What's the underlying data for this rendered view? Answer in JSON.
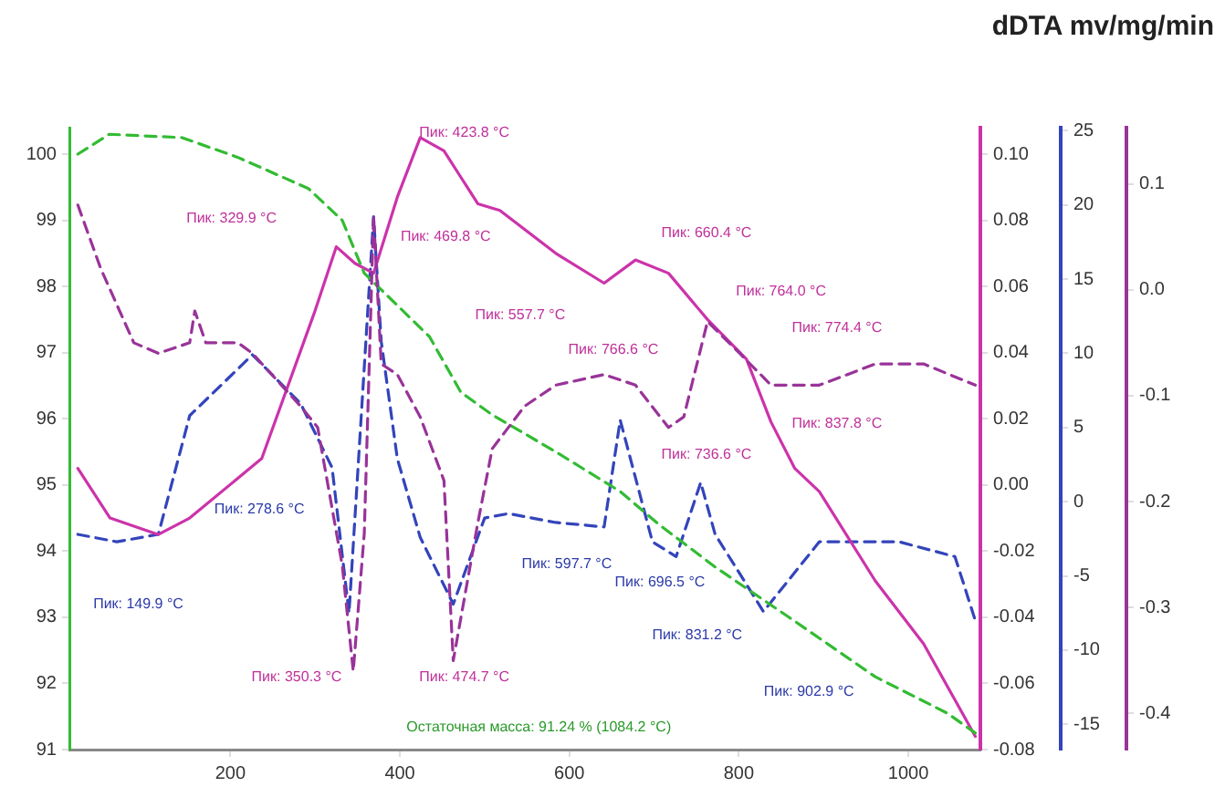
{
  "chart_data": [
    {
      "type": "line",
      "title": "dDTA mv/mg/min",
      "xlim": [
        10,
        1085
      ],
      "xticks": [
        200,
        400,
        600,
        800,
        1000
      ],
      "ylim": [
        91,
        100.4
      ],
      "yticks": [
        91,
        92,
        93,
        94,
        95,
        96,
        97,
        98,
        99,
        100
      ],
      "y2lim": [
        -0.08,
        0.108
      ],
      "y2ticks": [
        {
          "value": -0.08,
          "label": "-0.08"
        },
        {
          "value": -0.06,
          "label": "-0.06"
        },
        {
          "value": -0.04,
          "label": "-0.04"
        },
        {
          "value": -0.02,
          "label": "-0.02"
        },
        {
          "value": 0,
          "label": "0.00"
        },
        {
          "value": 0.02,
          "label": "0.02"
        },
        {
          "value": 0.04,
          "label": "0.04"
        },
        {
          "value": 0.06,
          "label": "0.06"
        },
        {
          "value": 0.08,
          "label": "0.08"
        },
        {
          "value": 0.1,
          "label": "0.10"
        }
      ],
      "y3lim": [
        -16.7,
        25.2
      ],
      "y3ticks": [
        -15,
        -10,
        -5,
        0,
        5,
        10,
        15,
        20,
        25
      ],
      "grid": false,
      "legend": false,
      "marker": "none",
      "series": [
        {
          "color": "#33bb33",
          "line_style": "dashed",
          "x": [
            20,
            57,
            143,
            209,
            292,
            332,
            358,
            435,
            472,
            509,
            584,
            660,
            706,
            772,
            866,
            961,
            1046,
            1079
          ],
          "values": [
            100.0,
            100.3,
            100.25,
            99.95,
            99.48,
            99.0,
            98.2,
            97.24,
            96.4,
            96.06,
            95.5,
            94.9,
            94.4,
            93.76,
            92.94,
            92.1,
            91.55,
            91.25
          ]
        },
        {
          "color": "#cc33aa",
          "line_style": "solid",
          "axis": "y2",
          "x": [
            20,
            58,
            115,
            152,
            237,
            299,
            325,
            347,
            369,
            397,
            424,
            452,
            492,
            518,
            584,
            641,
            678,
            717,
            763,
            809,
            838,
            866,
            895,
            961,
            1018,
            1055,
            1079
          ],
          "values": [
            0.005,
            -0.01,
            -0.015,
            -0.01,
            0.008,
            0.052,
            0.072,
            0.067,
            0.064,
            0.087,
            0.105,
            0.101,
            0.085,
            0.083,
            0.07,
            0.061,
            0.068,
            0.064,
            0.05,
            0.038,
            0.019,
            0.005,
            -0.002,
            -0.029,
            -0.048,
            -0.065,
            -0.076
          ]
        },
        {
          "color": "#3344bb",
          "line_style": "dashed",
          "axis": "y3",
          "x": [
            20,
            66,
            115,
            152,
            226,
            283,
            320,
            340,
            369,
            378,
            397,
            424,
            463,
            500,
            528,
            584,
            641,
            660,
            698,
            726,
            755,
            772,
            829,
            895,
            989,
            1055,
            1079
          ],
          "values": [
            -2.2,
            -2.7,
            -2.2,
            5.8,
            9.9,
            6.6,
            2.3,
            -7.5,
            19.2,
            10.8,
            2.9,
            -2.4,
            -6.9,
            -1.1,
            -0.8,
            -1.4,
            -1.7,
            5.5,
            -2.7,
            -3.7,
            1.3,
            -2.2,
            -7.4,
            -2.7,
            -2.7,
            -3.7,
            -8.0
          ]
        }
      ],
      "annotations": [
        "Пик: 329.9 °C",
        "Пик: 423.8 °C",
        "Пик: 469.8 °C",
        "Пик: 660.4 °C",
        "Пик: 557.7 °C",
        "Пик: 764.0 °C",
        "Пик: 774.4 °C",
        "Пик: 766.6 °C",
        "Пик: 736.6 °C",
        "Пик: 837.8 °C",
        "Пик: 278.6 °C",
        "Пик: 149.9 °C",
        "Пик: 350.3 °C",
        "Пик: 474.7 °C",
        "Пик: 597.7 °C",
        "Пик: 696.5 °C",
        "Пик: 831.2 °C",
        "Пик: 902.9 °C",
        "Остаточная масса: 91.24 % (1084.2 °C)"
      ]
    },
    {
      "type": "line",
      "xlim": [
        10,
        1085
      ],
      "ylim": [
        -0.434,
        0.153
      ],
      "yticks": [
        -0.4,
        -0.3,
        -0.2,
        -0.1,
        {
          "value": 0,
          "label": "0.0"
        },
        0.1
      ],
      "tick_labels": "y",
      "grid": false,
      "legend": false,
      "marker": "none",
      "series": [
        {
          "color": "#993399",
          "line_style": "dashed",
          "x": [
            20,
            47,
            86,
            115,
            152,
            158,
            171,
            209,
            226,
            283,
            303,
            332,
            345,
            358,
            369,
            378,
            397,
            424,
            452,
            463,
            492,
            509,
            547,
            584,
            641,
            678,
            717,
            735,
            763,
            801,
            838,
            895,
            961,
            1018,
            1079
          ],
          "values": [
            0.08,
            0.02,
            -0.05,
            -0.06,
            -0.05,
            -0.02,
            -0.05,
            -0.05,
            -0.06,
            -0.11,
            -0.13,
            -0.26,
            -0.36,
            -0.23,
            0.07,
            -0.07,
            -0.08,
            -0.12,
            -0.18,
            -0.35,
            -0.22,
            -0.15,
            -0.11,
            -0.09,
            -0.08,
            -0.09,
            -0.13,
            -0.12,
            -0.03,
            -0.06,
            -0.09,
            -0.09,
            -0.07,
            -0.07,
            -0.09
          ]
        }
      ]
    }
  ]
}
